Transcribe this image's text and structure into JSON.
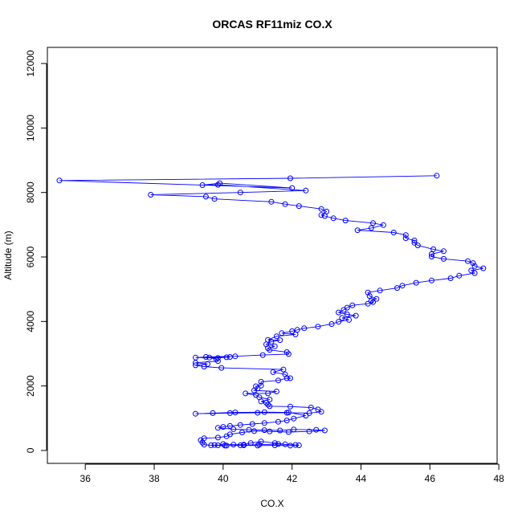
{
  "chart_data": {
    "type": "scatter",
    "title": "ORCAS RF11miz CO.X",
    "xlabel": "CO.X",
    "ylabel": "Altitude (m)",
    "xlim": [
      34.9,
      47.95
    ],
    "ylim": [
      -400,
      12500
    ],
    "x_ticks": [
      36,
      38,
      40,
      42,
      44,
      46,
      48
    ],
    "y_ticks": [
      0,
      2000,
      4000,
      6000,
      8000,
      10000,
      12000
    ],
    "grid": false,
    "legend": "none",
    "series": [
      {
        "color": "#0000ff",
        "marker": "open-circle",
        "connected": true,
        "points": [
          [
            46.2,
            8520
          ],
          [
            41.95,
            8440
          ],
          [
            35.25,
            8370
          ],
          [
            42.0,
            8140
          ],
          [
            39.9,
            8290
          ],
          [
            39.4,
            8230
          ],
          [
            39.85,
            8240
          ],
          [
            42.4,
            8060
          ],
          [
            40.5,
            8000
          ],
          [
            37.9,
            7930
          ],
          [
            39.5,
            7870
          ],
          [
            39.75,
            7800
          ],
          [
            41.4,
            7710
          ],
          [
            41.8,
            7640
          ],
          [
            42.2,
            7580
          ],
          [
            42.85,
            7490
          ],
          [
            43.0,
            7410
          ],
          [
            42.85,
            7300
          ],
          [
            42.95,
            7270
          ],
          [
            43.2,
            7200
          ],
          [
            43.55,
            7130
          ],
          [
            44.35,
            7050
          ],
          [
            44.65,
            6990
          ],
          [
            44.3,
            6900
          ],
          [
            43.9,
            6830
          ],
          [
            44.95,
            6760
          ],
          [
            45.3,
            6680
          ],
          [
            45.3,
            6580
          ],
          [
            45.55,
            6510
          ],
          [
            45.55,
            6440
          ],
          [
            45.65,
            6360
          ],
          [
            46.1,
            6240
          ],
          [
            46.4,
            6180
          ],
          [
            46.05,
            6090
          ],
          [
            46.05,
            6010
          ],
          [
            46.4,
            5940
          ],
          [
            47.1,
            5870
          ],
          [
            47.25,
            5810
          ],
          [
            47.3,
            5720
          ],
          [
            47.55,
            5650
          ],
          [
            47.2,
            5580
          ],
          [
            47.3,
            5500
          ],
          [
            46.85,
            5420
          ],
          [
            46.6,
            5340
          ],
          [
            46.05,
            5270
          ],
          [
            45.6,
            5200
          ],
          [
            45.2,
            5110
          ],
          [
            45.05,
            5040
          ],
          [
            44.55,
            4960
          ],
          [
            44.2,
            4900
          ],
          [
            44.25,
            4790
          ],
          [
            44.45,
            4700
          ],
          [
            44.3,
            4640
          ],
          [
            44.35,
            4600
          ],
          [
            44.2,
            4550
          ],
          [
            43.75,
            4500
          ],
          [
            43.6,
            4430
          ],
          [
            43.5,
            4360
          ],
          [
            43.35,
            4280
          ],
          [
            43.6,
            4220
          ],
          [
            43.85,
            4180
          ],
          [
            43.45,
            4110
          ],
          [
            43.65,
            4050
          ],
          [
            43.35,
            3990
          ],
          [
            43.15,
            3920
          ],
          [
            42.75,
            3840
          ],
          [
            42.35,
            3790
          ],
          [
            42.15,
            3740
          ],
          [
            42.0,
            3700
          ],
          [
            41.7,
            3640
          ],
          [
            42.1,
            3600
          ],
          [
            41.55,
            3540
          ],
          [
            41.3,
            3430
          ],
          [
            41.65,
            3420
          ],
          [
            41.4,
            3370
          ],
          [
            41.25,
            3290
          ],
          [
            41.5,
            3230
          ],
          [
            41.3,
            3170
          ],
          [
            41.35,
            3120
          ],
          [
            41.85,
            3050
          ],
          [
            41.9,
            2990
          ],
          [
            41.15,
            2960
          ],
          [
            40.35,
            2920
          ],
          [
            39.5,
            2900
          ],
          [
            39.2,
            2880
          ],
          [
            39.85,
            2870
          ],
          [
            40.1,
            2890
          ],
          [
            40.2,
            2900
          ],
          [
            39.6,
            2880
          ],
          [
            39.8,
            2830
          ],
          [
            39.85,
            2770
          ],
          [
            39.2,
            2720
          ],
          [
            39.55,
            2680
          ],
          [
            39.2,
            2640
          ],
          [
            39.45,
            2600
          ],
          [
            39.95,
            2560
          ],
          [
            41.75,
            2510
          ],
          [
            41.45,
            2430
          ],
          [
            41.8,
            2360
          ],
          [
            41.95,
            2240
          ],
          [
            41.85,
            2240
          ],
          [
            41.6,
            2170
          ],
          [
            41.1,
            2130
          ],
          [
            41.1,
            2010
          ],
          [
            40.95,
            1990
          ],
          [
            41.0,
            1920
          ],
          [
            40.9,
            1860
          ],
          [
            41.55,
            1830
          ],
          [
            41.3,
            1770
          ],
          [
            40.65,
            1770
          ],
          [
            40.95,
            1720
          ],
          [
            41.05,
            1650
          ],
          [
            41.35,
            1580
          ],
          [
            41.1,
            1520
          ],
          [
            41.25,
            1480
          ],
          [
            41.3,
            1420
          ],
          [
            41.35,
            1370
          ],
          [
            41.95,
            1360
          ],
          [
            42.55,
            1330
          ],
          [
            42.75,
            1270
          ],
          [
            42.85,
            1200
          ],
          [
            42.5,
            1160
          ],
          [
            41.85,
            1170
          ],
          [
            41.0,
            1170
          ],
          [
            40.2,
            1160
          ],
          [
            39.2,
            1140
          ],
          [
            39.7,
            1160
          ],
          [
            40.35,
            1180
          ],
          [
            41.2,
            1190
          ],
          [
            41.9,
            1180
          ],
          [
            42.4,
            1080
          ],
          [
            42.05,
            990
          ],
          [
            41.85,
            930
          ],
          [
            41.6,
            890
          ],
          [
            41.2,
            850
          ],
          [
            40.85,
            820
          ],
          [
            40.5,
            790
          ],
          [
            40.2,
            760
          ],
          [
            40.0,
            730
          ],
          [
            39.85,
            700
          ],
          [
            40.3,
            660
          ],
          [
            40.75,
            640
          ],
          [
            41.2,
            630
          ],
          [
            41.65,
            620
          ],
          [
            42.05,
            650
          ],
          [
            42.7,
            640
          ],
          [
            42.95,
            620
          ],
          [
            42.5,
            590
          ],
          [
            41.9,
            570
          ],
          [
            41.35,
            590
          ],
          [
            40.9,
            600
          ],
          [
            40.55,
            560
          ],
          [
            40.2,
            500
          ],
          [
            40.1,
            440
          ],
          [
            39.85,
            400
          ],
          [
            39.45,
            380
          ],
          [
            39.35,
            320
          ],
          [
            39.4,
            240
          ],
          [
            39.45,
            180
          ],
          [
            39.65,
            160
          ],
          [
            40.1,
            150
          ],
          [
            40.6,
            160
          ],
          [
            41.0,
            150
          ],
          [
            41.5,
            160
          ],
          [
            41.95,
            150
          ],
          [
            42.2,
            160
          ],
          [
            41.8,
            190
          ],
          [
            41.5,
            230
          ],
          [
            41.1,
            280
          ],
          [
            40.8,
            230
          ],
          [
            40.6,
            180
          ],
          [
            40.3,
            180
          ],
          [
            40.0,
            200
          ],
          [
            39.85,
            160
          ],
          [
            39.75,
            170
          ],
          [
            40.05,
            150
          ],
          [
            40.5,
            160
          ],
          [
            41.05,
            180
          ],
          [
            41.6,
            200
          ],
          [
            42.1,
            170
          ]
        ]
      }
    ]
  }
}
